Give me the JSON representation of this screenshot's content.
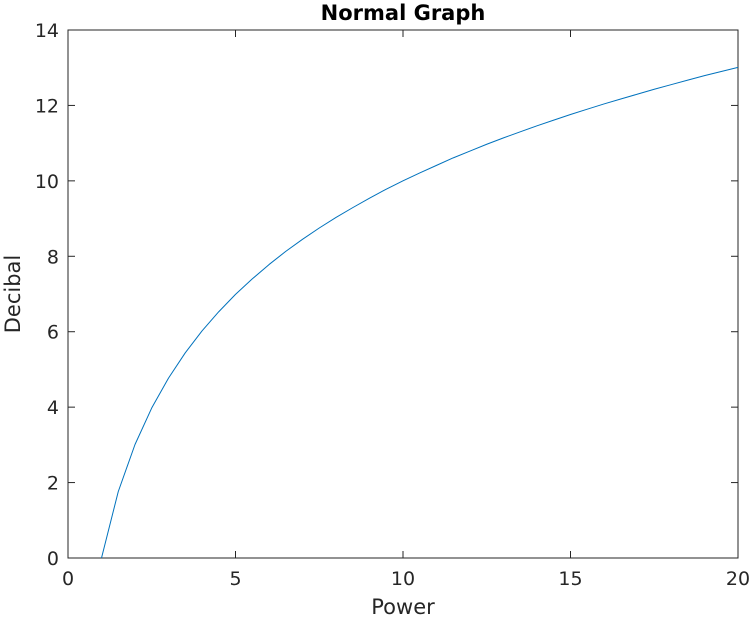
{
  "chart_data": {
    "type": "line",
    "title": "Normal Graph",
    "xlabel": "Power",
    "ylabel": "Decibal",
    "xlim": [
      0,
      20
    ],
    "ylim": [
      0,
      14
    ],
    "xticks": [
      0,
      5,
      10,
      15,
      20
    ],
    "yticks": [
      0,
      2,
      4,
      6,
      8,
      10,
      12,
      14
    ],
    "xtick_labels": [
      "0",
      "5",
      "10",
      "15",
      "20"
    ],
    "ytick_labels": [
      "0",
      "2",
      "4",
      "6",
      "8",
      "10",
      "12",
      "14"
    ],
    "grid": false,
    "legend": "none",
    "series": [
      {
        "color": "#0072bd",
        "x": [
          1,
          1.5,
          2,
          2.5,
          3,
          3.5,
          4,
          4.5,
          5,
          5.5,
          6,
          6.5,
          7,
          7.5,
          8,
          8.5,
          9,
          9.5,
          10,
          10.5,
          11,
          11.5,
          12,
          12.5,
          13,
          13.5,
          14,
          14.5,
          15,
          15.5,
          16,
          16.5,
          17,
          17.5,
          18,
          18.5,
          19,
          19.5,
          20
        ],
        "y": [
          0,
          1.76,
          3.01,
          3.98,
          4.77,
          5.44,
          6.02,
          6.53,
          6.99,
          7.4,
          7.78,
          8.13,
          8.45,
          8.75,
          9.03,
          9.29,
          9.54,
          9.78,
          10.0,
          10.21,
          10.41,
          10.61,
          10.79,
          10.97,
          11.14,
          11.3,
          11.46,
          11.61,
          11.76,
          11.9,
          12.04,
          12.17,
          12.3,
          12.43,
          12.55,
          12.67,
          12.79,
          12.9,
          13.01
        ]
      }
    ]
  }
}
